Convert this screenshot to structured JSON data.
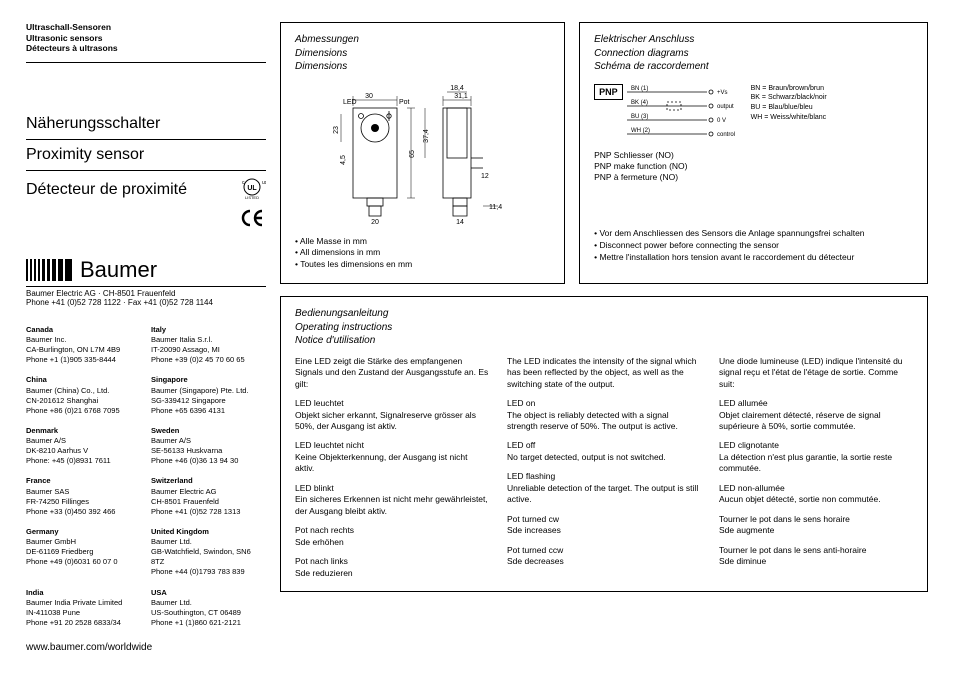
{
  "header": {
    "title_de": "Ultraschall-Sensoren",
    "title_en": "Ultrasonic sensors",
    "title_fr": "Détecteurs à ultrasons",
    "product_de": "Näherungsschalter",
    "product_en": "Proximity sensor",
    "product_fr": "Détecteur de proximité",
    "company_line": "Baumer Electric AG · CH-8501 Frauenfeld",
    "phone_line": "Phone +41 (0)52 728 1122 · Fax +41 (0)52 728 1144",
    "brand": "Baumer",
    "url": "www.baumer.com/worldwide"
  },
  "addresses": {
    "col1": [
      {
        "c": "Canada",
        "l1": "Baumer Inc.",
        "l2": "CA-Burlington, ON L7M 4B9",
        "l3": "Phone +1 (1)905 335-8444"
      },
      {
        "c": "China",
        "l1": "Baumer (China) Co., Ltd.",
        "l2": "CN-201612 Shanghai",
        "l3": "Phone +86 (0)21 6768 7095"
      },
      {
        "c": "Denmark",
        "l1": "Baumer A/S",
        "l2": "DK-8210 Aarhus V",
        "l3": "Phone: +45 (0)8931 7611"
      },
      {
        "c": "France",
        "l1": "Baumer SAS",
        "l2": "FR-74250 Fillinges",
        "l3": "Phone +33 (0)450 392 466"
      },
      {
        "c": "Germany",
        "l1": "Baumer GmbH",
        "l2": "DE-61169 Friedberg",
        "l3": "Phone +49 (0)6031 60 07 0"
      },
      {
        "c": "India",
        "l1": "Baumer India Private Limited",
        "l2": "IN-411038 Pune",
        "l3": "Phone +91 20 2528 6833/34"
      }
    ],
    "col2": [
      {
        "c": "Italy",
        "l1": "Baumer Italia S.r.l.",
        "l2": "IT-20090 Assago, MI",
        "l3": "Phone +39 (0)2 45 70 60 65"
      },
      {
        "c": "Singapore",
        "l1": "Baumer (Singapore) Pte. Ltd.",
        "l2": "SG-339412 Singapore",
        "l3": "Phone +65 6396 4131"
      },
      {
        "c": "Sweden",
        "l1": "Baumer A/S",
        "l2": "SE-56133 Huskvarna",
        "l3": "Phone +46 (0)36 13 94 30"
      },
      {
        "c": "Switzerland",
        "l1": "Baumer Electric AG",
        "l2": "CH-8501 Frauenfeld",
        "l3": "Phone +41 (0)52 728 1313"
      },
      {
        "c": "United Kingdom",
        "l1": "Baumer Ltd.",
        "l2": "GB-Watchfield, Swindon, SN6 8TZ",
        "l3": "Phone +44 (0)1793 783 839"
      },
      {
        "c": "USA",
        "l1": "Baumer Ltd.",
        "l2": "US-Southington, CT 06489",
        "l3": "Phone +1 (1)860 621-2121"
      }
    ]
  },
  "dimensions": {
    "heading_de": "Abmessungen",
    "heading_en": "Dimensions",
    "heading_fr": "Dimensions",
    "notes": [
      "Alle Masse in mm",
      "All dimensions in mm",
      "Toutes les dimensions en mm"
    ],
    "labels": {
      "led": "LED",
      "pot": "Pot"
    },
    "values": {
      "w_top": "30",
      "w_side": "31,1",
      "w_inner": "18,4",
      "h_body": "65",
      "h_sensor": "23",
      "h_mid": "37,4",
      "gap": "4,5",
      "stub": "12",
      "foot_w": "20",
      "conn_w": "14",
      "conn_ext": "11,4"
    }
  },
  "connection": {
    "heading_de": "Elektrischer Anschluss",
    "heading_en": "Connection diagrams",
    "heading_fr": "Schéma de raccordement",
    "pnp": "PNP",
    "wires": [
      {
        "code": "BN (1)",
        "label": "+Vs"
      },
      {
        "code": "BK (4)",
        "label": "output"
      },
      {
        "code": "BU (3)",
        "label": "0 V"
      },
      {
        "code": "WH (2)",
        "label": "control"
      }
    ],
    "legend": [
      "BN = Braun/brown/brun",
      "BK = Schwarz/black/noir",
      "BU = Blau/blue/bleu",
      "WH = Weiss/white/blanc"
    ],
    "func": [
      "PNP Schliesser (NO)",
      "PNP make function (NO)",
      "PNP à fermeture (NO)"
    ],
    "warn": [
      "Vor dem Anschliessen des Sensors die Anlage spannungsfrei schalten",
      "Disconnect power before connecting the sensor",
      "Mettre l'installation hors tension avant le raccordement du détecteur"
    ]
  },
  "instructions": {
    "heading_de": "Bedienungsanleitung",
    "heading_en": "Operating instructions",
    "heading_fr": "Notice d'utilisation",
    "de": {
      "intro": "Eine LED zeigt die Stärke des empfangenen Signals und den Zustand der Ausgangsstufe an. Es gilt:",
      "s1_h": "LED leuchtet",
      "s1_t": "Objekt sicher erkannt, Signal­reserve grösser als 50%, der Ausgang ist aktiv.",
      "s2_h": "LED leuchtet nicht",
      "s2_t": "Keine Objekterkennung, der Ausgang ist nicht aktiv.",
      "s3_h": "LED blinkt",
      "s3_t": "Ein sicheres Erkennen ist nicht mehr gewährleistet, der Ausgang bleibt aktiv.",
      "s4_h": "Pot nach rechts",
      "s4_t": "Sde erhöhen",
      "s5_h": "Pot nach links",
      "s5_t": "Sde reduzieren"
    },
    "en": {
      "intro": "The LED indicates the intensity of the signal which has been reflected by the object, as well as the switching state of the output.",
      "s1_h": "LED on",
      "s1_t": "The object is reliably detected with a signal strength reserve of 50%. The output is active.",
      "s2_h": "LED off",
      "s2_t": "No target detected, output is not switched.",
      "s3_h": "LED flashing",
      "s3_t": "Unreliable detection of the target. The output is still active.",
      "s4_h": "Pot turned cw",
      "s4_t": "Sde increases",
      "s5_h": "Pot turned ccw",
      "s5_t": "Sde decreases"
    },
    "fr": {
      "intro": "Une diode lumineuse (LED) indique l'intensité du signal reçu et l'état de l'étage de sortie. Comme suit:",
      "s1_h": "LED allumée",
      "s1_t": "Objet clairement détecté, réserve de signal supérieure à 50%, sortie commutée.",
      "s2_h": "LED clignotante",
      "s2_t": "La détection n'est plus garantie, la sortie reste commutée.",
      "s3_h": "LED non-allumée",
      "s3_t": "Aucun objet détecté, sortie non commutée.",
      "s4_h": "Tourner le pot dans le sens horaire",
      "s4_t": "Sde augmente",
      "s5_h": "Tourner le pot dans le sens anti-horaire",
      "s5_t": "Sde diminue"
    }
  },
  "colors": {
    "line": "#000000",
    "bg": "#ffffff"
  }
}
